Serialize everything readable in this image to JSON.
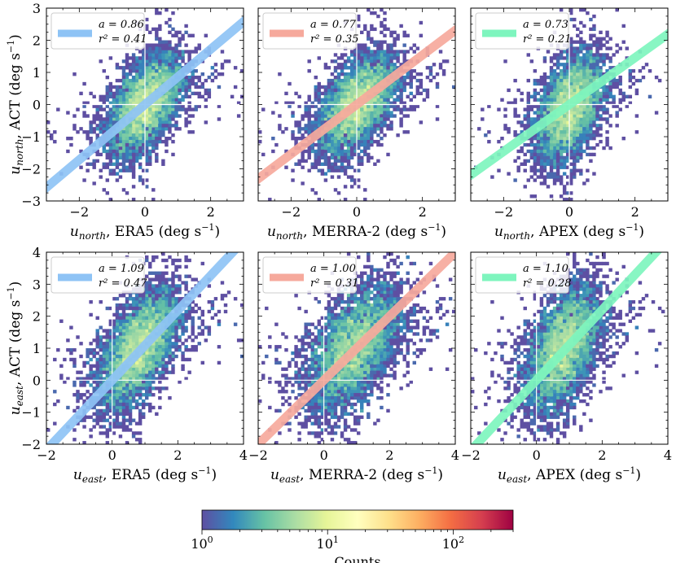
{
  "chart_data": {
    "type": "heatmap",
    "panels": [
      {
        "id": "north-era5",
        "xlabel_var": "u",
        "xlabel_sub": "north",
        "xlabel_src": "ERA5",
        "ylabel_var": "u",
        "ylabel_sub": "north",
        "ylabel_src": "ACT",
        "xlim": [
          -3,
          3
        ],
        "ylim": [
          -3,
          3
        ],
        "xticks": [
          -2,
          0,
          2
        ],
        "yticks": [
          -3,
          -2,
          -1,
          0,
          1,
          2,
          3
        ],
        "fit_slope": 0.86,
        "a_text": "a = 0.86",
        "r2_text": "r² = 0.41",
        "color": "#8ec3f5",
        "cloud": {
          "cx": 0,
          "cy": 0,
          "sx": 0.55,
          "sy": 0.75,
          "corr": 0.55,
          "n": 420
        }
      },
      {
        "id": "north-merra2",
        "xlabel_var": "u",
        "xlabel_sub": "north",
        "xlabel_src": "MERRA-2",
        "ylabel_var": "",
        "ylabel_sub": "",
        "ylabel_src": "",
        "xlim": [
          -3,
          3
        ],
        "ylim": [
          -3,
          3
        ],
        "xticks": [
          -2,
          0,
          2
        ],
        "yticks": [],
        "fit_slope": 0.77,
        "a_text": "a = 0.77",
        "r2_text": "r² = 0.35",
        "color": "#f6a99c",
        "cloud": {
          "cx": 0,
          "cy": 0,
          "sx": 0.6,
          "sy": 0.75,
          "corr": 0.55,
          "n": 420
        }
      },
      {
        "id": "north-apex",
        "xlabel_var": "u",
        "xlabel_sub": "north",
        "xlabel_src": "APEX",
        "ylabel_var": "",
        "ylabel_sub": "",
        "ylabel_src": "",
        "xlim": [
          -3,
          3
        ],
        "ylim": [
          -3,
          3
        ],
        "xticks": [
          -2,
          0,
          2
        ],
        "yticks": [],
        "fit_slope": 0.73,
        "a_text": "a = 0.73",
        "r2_text": "r² = 0.21",
        "color": "#7ef5be",
        "cloud": {
          "cx": 0,
          "cy": -0.1,
          "sx": 0.5,
          "sy": 0.8,
          "corr": 0.45,
          "n": 400
        }
      },
      {
        "id": "east-era5",
        "xlabel_var": "u",
        "xlabel_sub": "east",
        "xlabel_src": "ERA5",
        "ylabel_var": "u",
        "ylabel_sub": "east",
        "ylabel_src": "ACT",
        "xlim": [
          -2,
          4
        ],
        "ylim": [
          -2,
          4
        ],
        "xticks": [
          -2,
          0,
          2,
          4
        ],
        "yticks": [
          -2,
          -1,
          0,
          1,
          2,
          3,
          4
        ],
        "fit_slope": 1.09,
        "a_text": "a = 1.09",
        "r2_text": "r² = 0.47",
        "color": "#8ec3f5",
        "cloud": {
          "cx": 0.8,
          "cy": 1.0,
          "sx": 0.6,
          "sy": 0.9,
          "corr": 0.6,
          "n": 460
        }
      },
      {
        "id": "east-merra2",
        "xlabel_var": "u",
        "xlabel_sub": "east",
        "xlabel_src": "MERRA-2",
        "ylabel_var": "",
        "ylabel_sub": "",
        "ylabel_src": "",
        "xlim": [
          -2,
          4
        ],
        "ylim": [
          -2,
          4
        ],
        "xticks": [
          -2,
          0,
          2,
          4
        ],
        "yticks": [],
        "fit_slope": 1.0,
        "a_text": "a = 1.00",
        "r2_text": "r² = 0.31",
        "color": "#f6a99c",
        "cloud": {
          "cx": 0.9,
          "cy": 1.0,
          "sx": 0.7,
          "sy": 0.95,
          "corr": 0.55,
          "n": 460
        }
      },
      {
        "id": "east-apex",
        "xlabel_var": "u",
        "xlabel_sub": "east",
        "xlabel_src": "APEX",
        "ylabel_var": "",
        "ylabel_sub": "",
        "ylabel_src": "",
        "xlim": [
          -2,
          4
        ],
        "ylim": [
          -2,
          4
        ],
        "xticks": [
          -2,
          0,
          2,
          4
        ],
        "yticks": [],
        "fit_slope": 1.1,
        "a_text": "a = 1.10",
        "r2_text": "r² = 0.28",
        "color": "#7ef5be",
        "cloud": {
          "cx": 0.8,
          "cy": 1.0,
          "sx": 0.55,
          "sy": 0.95,
          "corr": 0.5,
          "n": 440
        }
      }
    ],
    "colorbar": {
      "label": "Counts",
      "scale": "log",
      "range": [
        1,
        300
      ],
      "tick_values": [
        1,
        10,
        100
      ],
      "tick_labels": [
        "10",
        "10",
        "10"
      ],
      "tick_exponents": [
        "0",
        "1",
        "2"
      ],
      "colormap": "Spectral_r",
      "stops": [
        "#5e4fa2",
        "#3288bd",
        "#66c2a5",
        "#abdda4",
        "#e6f598",
        "#ffffbf",
        "#fee08b",
        "#fdae61",
        "#f46d43",
        "#d53e4f",
        "#9e0142"
      ]
    },
    "units": "(deg s",
    "units_exp": "−1",
    "units_close": ")"
  }
}
